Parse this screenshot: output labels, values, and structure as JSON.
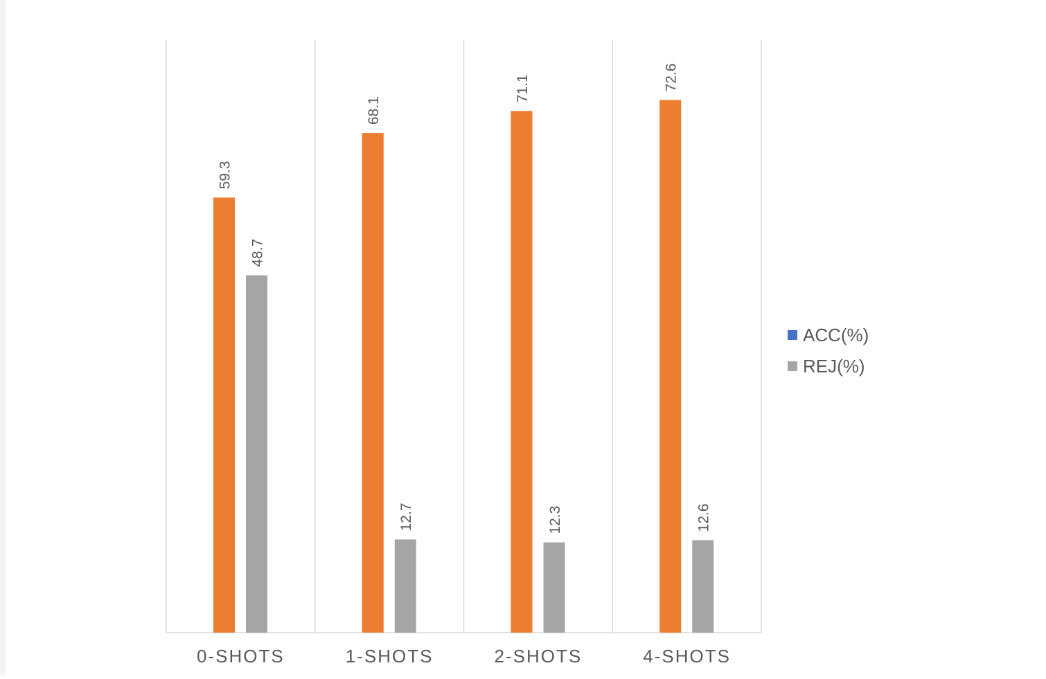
{
  "chart_data": {
    "type": "bar",
    "categories": [
      "0-SHOTS",
      "1-SHOTS",
      "2-SHOTS",
      "4-SHOTS"
    ],
    "series": [
      {
        "name": "ACC(%)",
        "values": [
          59.3,
          68.1,
          71.1,
          72.6
        ],
        "labels": [
          "59.3",
          "68.1",
          "71.1",
          "72.6"
        ],
        "bar_color": "#ed7d31",
        "legend_color": "#4472c4"
      },
      {
        "name": "REJ(%)",
        "values": [
          48.7,
          12.7,
          12.3,
          12.6
        ],
        "labels": [
          "48.7",
          "12.7",
          "12.3",
          "12.6"
        ],
        "bar_color": "#a5a5a5",
        "legend_color": "#a5a5a5"
      }
    ],
    "ylim": [
      0,
      80
    ],
    "grid": "vertical category separators",
    "legend": "right",
    "data_labels": "rotated",
    "colors": {
      "label_text": "#595959",
      "gridline": "#d9d9d9"
    }
  }
}
